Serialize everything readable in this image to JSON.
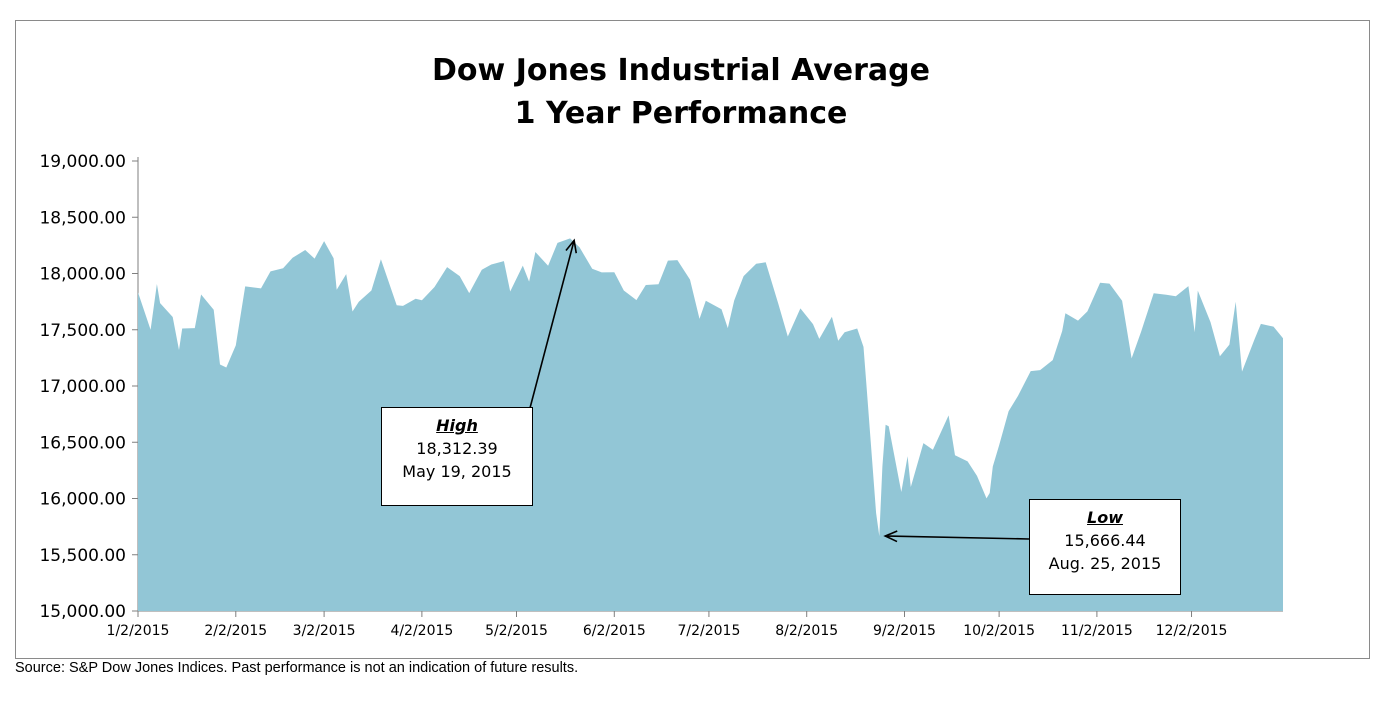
{
  "chart_data": {
    "type": "area",
    "title": "Dow Jones Industrial Average",
    "subtitle": "1 Year Performance",
    "ylim": [
      15000,
      19000
    ],
    "y_ticks": [
      "15,000.00",
      "15,500.00",
      "16,000.00",
      "16,500.00",
      "17,000.00",
      "17,500.00",
      "18,000.00",
      "18,500.00",
      "19,000.00"
    ],
    "x_range": [
      "2015-01-02",
      "2015-12-31"
    ],
    "x_ticks": [
      "1/2/2015",
      "2/2/2015",
      "3/2/2015",
      "4/2/2015",
      "5/2/2015",
      "6/2/2015",
      "7/2/2015",
      "8/2/2015",
      "9/2/2015",
      "10/2/2015",
      "11/2/2015",
      "12/2/2015"
    ],
    "grid": false,
    "fill_color": "#92c6d6",
    "series": [
      {
        "x": [
          "2015-01-02",
          "2015-01-06",
          "2015-01-08",
          "2015-01-09",
          "2015-01-13",
          "2015-01-15",
          "2015-01-16",
          "2015-01-20",
          "2015-01-22",
          "2015-01-26",
          "2015-01-28",
          "2015-01-30",
          "2015-02-02",
          "2015-02-05",
          "2015-02-10",
          "2015-02-13",
          "2015-02-17",
          "2015-02-20",
          "2015-02-24",
          "2015-02-27",
          "2015-03-02",
          "2015-03-05",
          "2015-03-06",
          "2015-03-09",
          "2015-03-11",
          "2015-03-13",
          "2015-03-17",
          "2015-03-20",
          "2015-03-25",
          "2015-03-27",
          "2015-03-31",
          "2015-04-02",
          "2015-04-06",
          "2015-04-10",
          "2015-04-14",
          "2015-04-17",
          "2015-04-21",
          "2015-04-24",
          "2015-04-28",
          "2015-04-30",
          "2015-05-04",
          "2015-05-06",
          "2015-05-08",
          "2015-05-12",
          "2015-05-15",
          "2015-05-19",
          "2015-05-22",
          "2015-05-26",
          "2015-05-29",
          "2015-06-02",
          "2015-06-05",
          "2015-06-09",
          "2015-06-12",
          "2015-06-16",
          "2015-06-19",
          "2015-06-22",
          "2015-06-26",
          "2015-06-29",
          "2015-07-01",
          "2015-07-06",
          "2015-07-08",
          "2015-07-10",
          "2015-07-13",
          "2015-07-17",
          "2015-07-20",
          "2015-07-24",
          "2015-07-27",
          "2015-07-31",
          "2015-08-04",
          "2015-08-06",
          "2015-08-10",
          "2015-08-12",
          "2015-08-14",
          "2015-08-18",
          "2015-08-20",
          "2015-08-21",
          "2015-08-24",
          "2015-08-25",
          "2015-08-26",
          "2015-08-27",
          "2015-08-28",
          "2015-09-01",
          "2015-09-03",
          "2015-09-04",
          "2015-09-08",
          "2015-09-11",
          "2015-09-16",
          "2015-09-18",
          "2015-09-22",
          "2015-09-25",
          "2015-09-28",
          "2015-09-29",
          "2015-09-30",
          "2015-10-02",
          "2015-10-05",
          "2015-10-08",
          "2015-10-12",
          "2015-10-15",
          "2015-10-19",
          "2015-10-22",
          "2015-10-23",
          "2015-10-27",
          "2015-10-30",
          "2015-11-03",
          "2015-11-06",
          "2015-11-10",
          "2015-11-13",
          "2015-11-16",
          "2015-11-20",
          "2015-11-24",
          "2015-11-27",
          "2015-12-01",
          "2015-12-03",
          "2015-12-04",
          "2015-12-08",
          "2015-12-11",
          "2015-12-14",
          "2015-12-16",
          "2015-12-18",
          "2015-12-22",
          "2015-12-24",
          "2015-12-28",
          "2015-12-31"
        ],
        "values": [
          17832,
          17500,
          17907,
          17737,
          17613,
          17320,
          17511,
          17515,
          17813,
          17678,
          17191,
          17164,
          17361,
          17885,
          17868,
          18019,
          18047,
          18140,
          18209,
          18132,
          18288,
          18135,
          17856,
          17995,
          17662,
          17749,
          17849,
          18127,
          17718,
          17712,
          17776,
          17763,
          17880,
          18057,
          17977,
          17826,
          18034,
          18080,
          18110,
          17840,
          18070,
          17928,
          18191,
          18068,
          18272,
          18312,
          18232,
          18042,
          18010,
          18011,
          17849,
          17764,
          17898,
          17904,
          18115,
          18119,
          17946,
          17596,
          17757,
          17683,
          17515,
          17760,
          17977,
          18086,
          18100,
          17731,
          17440,
          17690,
          17550,
          17419,
          17615,
          17402,
          17477,
          17511,
          17348,
          16990,
          15871,
          15666,
          16285,
          16655,
          16643,
          16058,
          16375,
          16102,
          16492,
          16433,
          16739,
          16384,
          16330,
          16201,
          16001,
          16049,
          16284,
          16472,
          16776,
          16912,
          17132,
          17141,
          17230,
          17489,
          17646,
          17581,
          17663,
          17918,
          17910,
          17758,
          17245,
          17483,
          17824,
          17812,
          17798,
          17888,
          17478,
          17848,
          17568,
          17265,
          17368,
          17749,
          17128,
          17417,
          17552,
          17528,
          17425
        ]
      }
    ],
    "annotations": [
      {
        "title": "High",
        "value": "18,312.39",
        "date": "May 19, 2015",
        "target": [
          "2015-05-19",
          18312.39
        ]
      },
      {
        "title": "Low",
        "value": "15,666.44",
        "date": "Aug. 25, 2015",
        "target": [
          "2015-08-25",
          15666.44
        ]
      }
    ]
  },
  "source": "Source: S&P Dow Jones Indices. Past performance is not an indication of future results."
}
